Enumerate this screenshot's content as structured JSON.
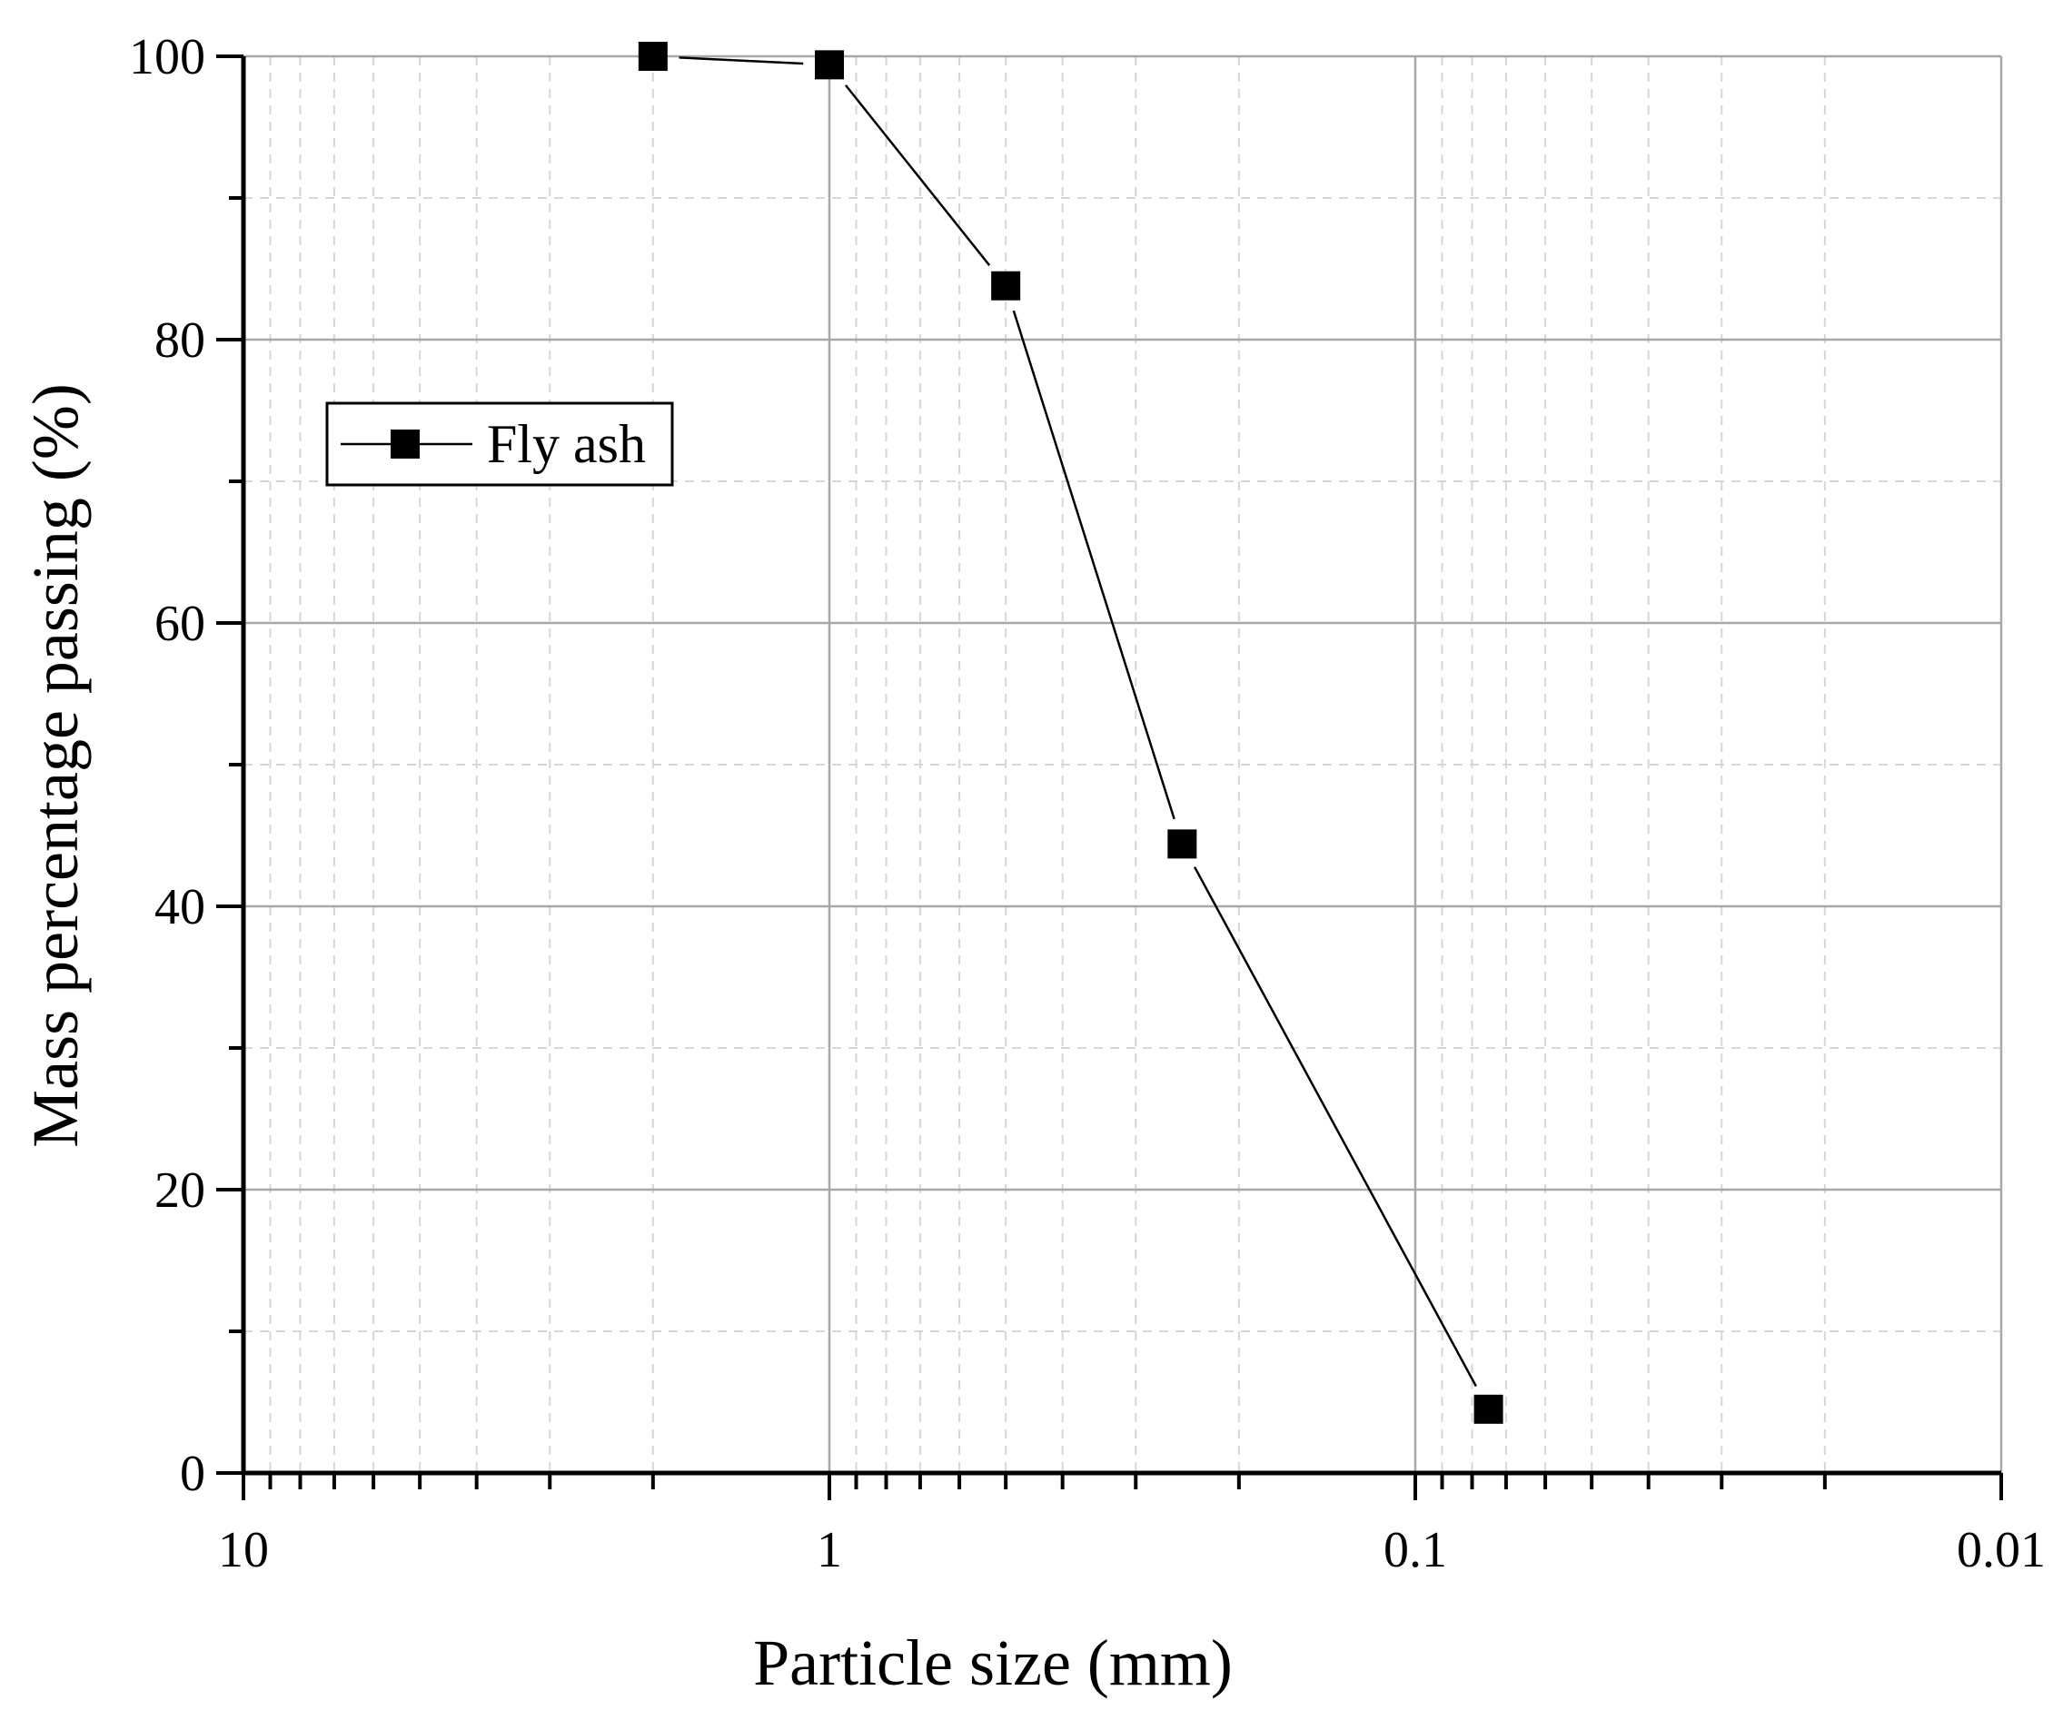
{
  "chart_data": {
    "type": "line",
    "title": "",
    "xlabel": "Particle size (mm)",
    "ylabel": "Mass percentage passing (%)",
    "x_scale": "log",
    "x_reversed": true,
    "xlim": [
      10,
      0.01
    ],
    "ylim": [
      0,
      100
    ],
    "x_ticks": [
      10,
      1,
      0.1,
      0.01
    ],
    "x_tick_labels": [
      "10",
      "1",
      "0.1",
      "0.01"
    ],
    "y_ticks": [
      0,
      20,
      40,
      60,
      80,
      100
    ],
    "y_tick_labels": [
      "0",
      "20",
      "40",
      "60",
      "80",
      "100"
    ],
    "grid": true,
    "legend_position": "upper-left",
    "series": [
      {
        "name": "Fly ash",
        "marker": "square",
        "color": "#000000",
        "x": [
          2,
          1,
          0.5,
          0.25,
          0.075
        ],
        "y": [
          100,
          99.4,
          83.8,
          44.4,
          4.5
        ]
      }
    ]
  }
}
